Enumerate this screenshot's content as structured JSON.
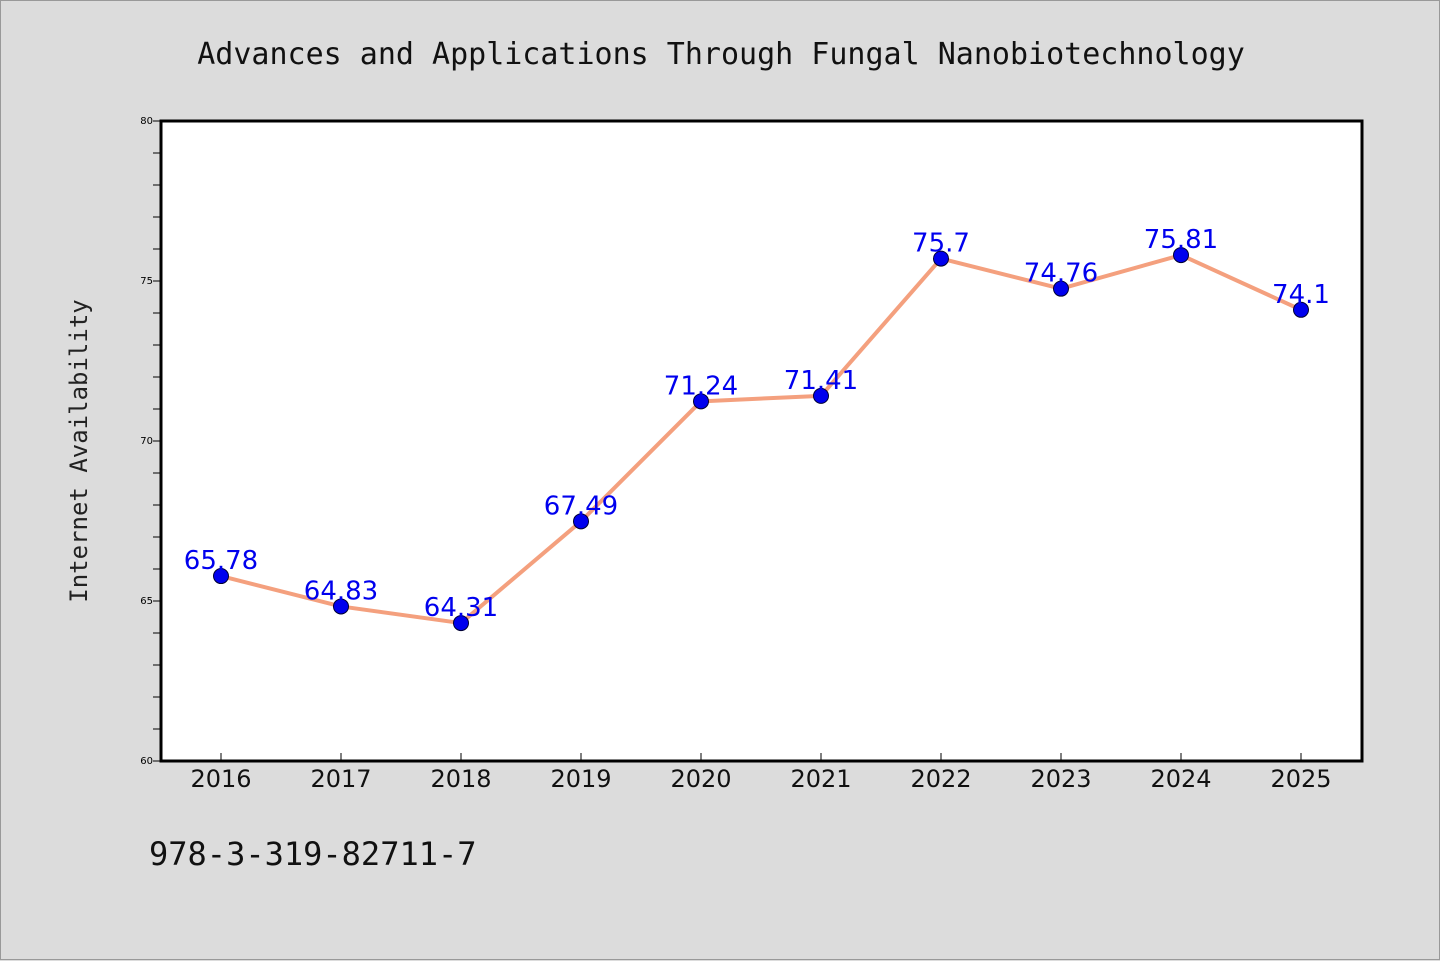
{
  "chart_data": {
    "type": "line",
    "title": "Advances and Applications Through Fungal Nanobiotechnology",
    "xlabel": "",
    "ylabel": "Internet Availability",
    "categories": [
      "2016",
      "2017",
      "2018",
      "2019",
      "2020",
      "2021",
      "2022",
      "2023",
      "2024",
      "2025"
    ],
    "series": [
      {
        "values": [
          65.78,
          64.83,
          64.31,
          67.49,
          71.24,
          71.41,
          75.7,
          74.76,
          75.81,
          74.1
        ],
        "labels": [
          "65.78",
          "64.83",
          "64.31",
          "67.49",
          "71.24",
          "71.41",
          "75.7",
          "74.76",
          "75.81",
          "74.1"
        ]
      }
    ],
    "ylim": [
      60,
      80
    ],
    "yticks": [
      60,
      65,
      70,
      75,
      80
    ],
    "ytick_labels": [
      "60",
      "65",
      "70",
      "75",
      "80"
    ],
    "grid": false,
    "colors": {
      "line": "#f4a07e",
      "marker": "#0000ee",
      "data_label": "#0000ee",
      "plot_background": "#ffffff",
      "page_background": "#dcdcdc"
    }
  },
  "footer": {
    "isbn": "978-3-319-82711-7"
  }
}
